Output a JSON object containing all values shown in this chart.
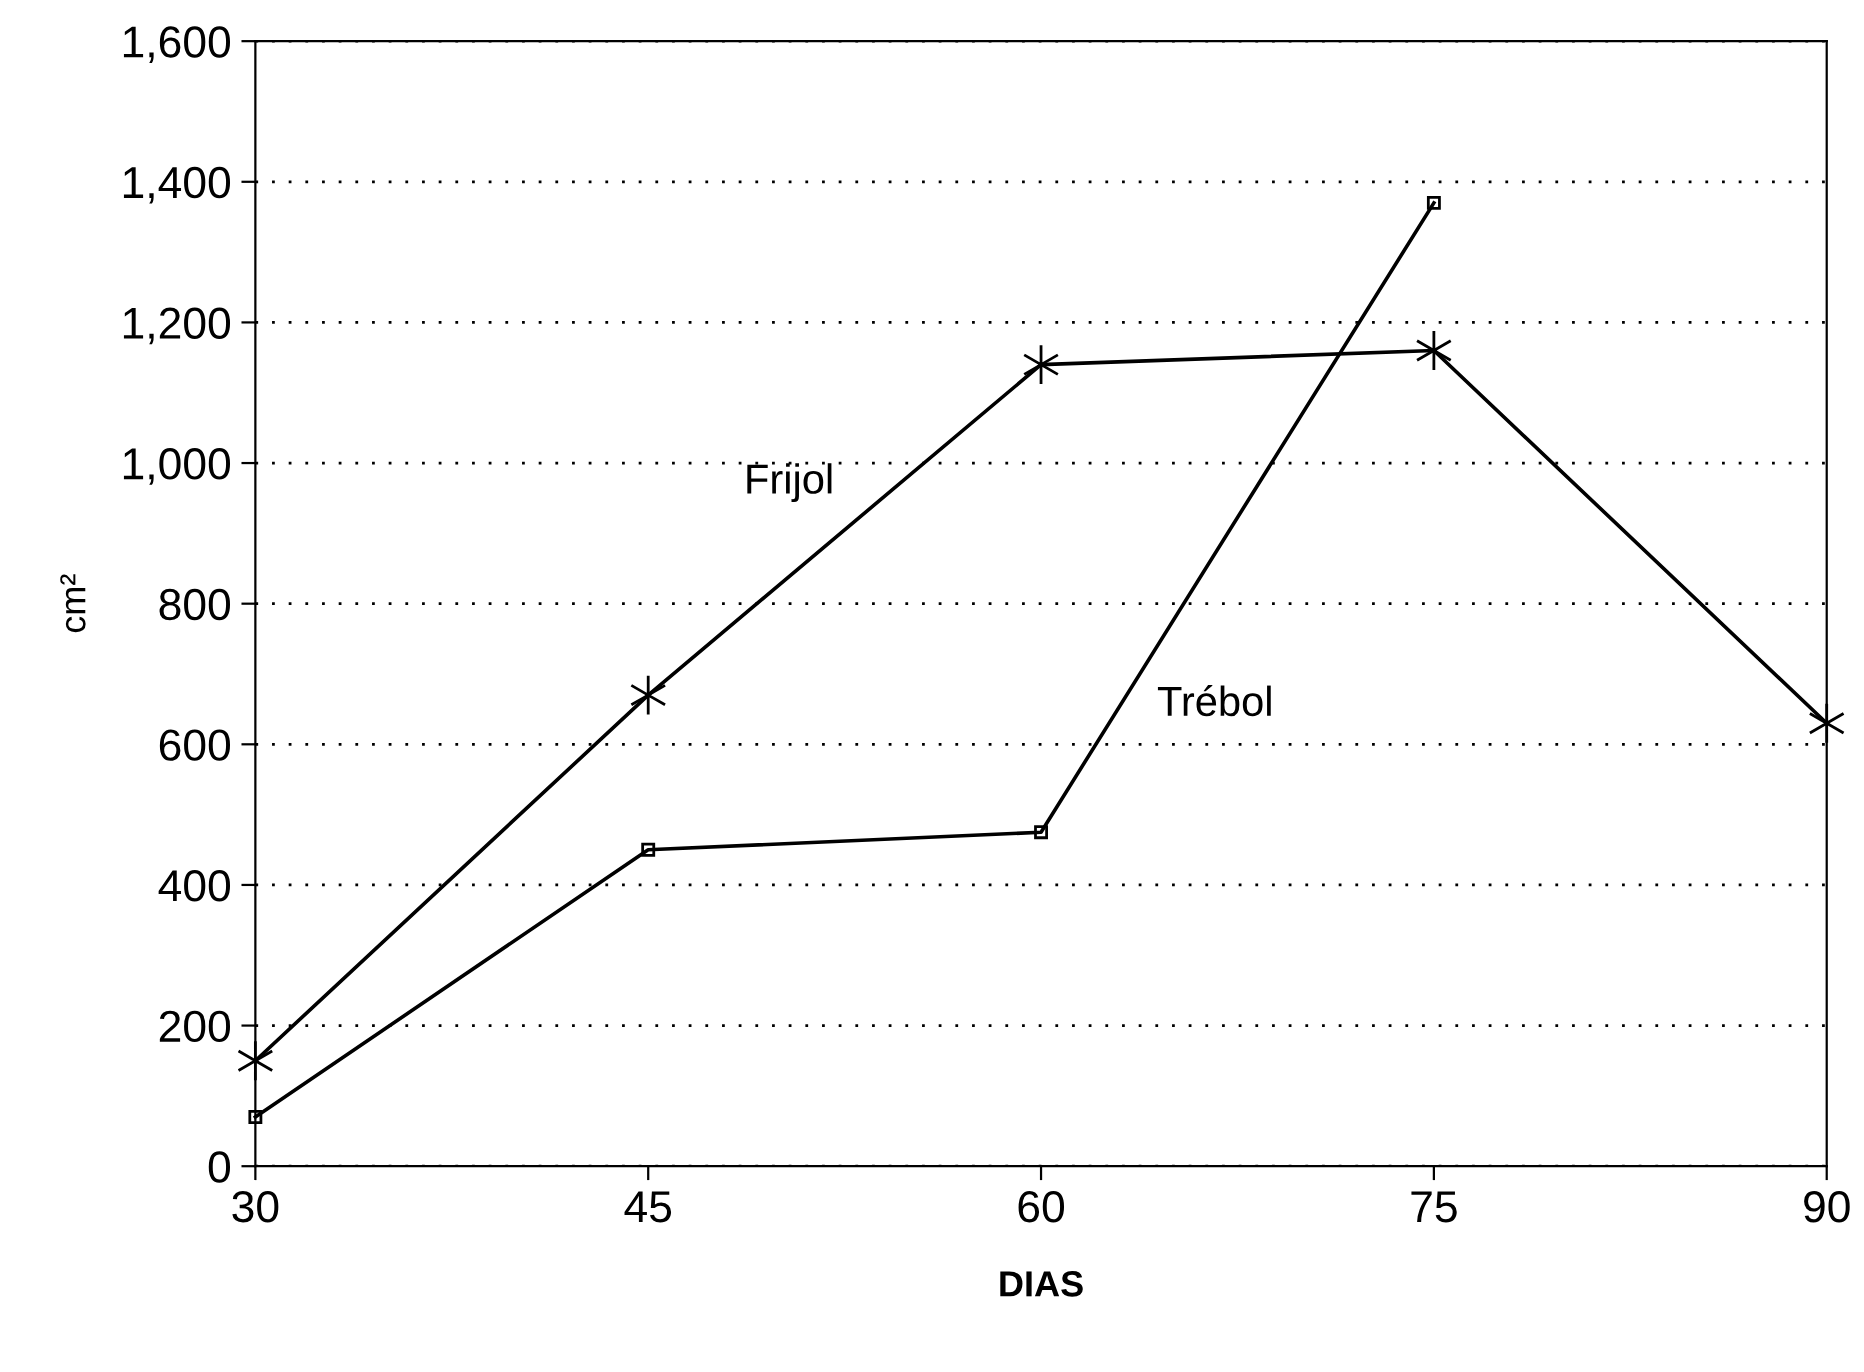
{
  "chart_data": {
    "type": "line",
    "xlabel": "DIAS",
    "ylabel": "cm²",
    "x": [
      30,
      45,
      60,
      75,
      90
    ],
    "series": [
      {
        "name": "Frijol",
        "color": "#000000",
        "marker": "cross",
        "values": [
          150,
          670,
          1140,
          1160,
          630
        ]
      },
      {
        "name": "Trébol",
        "color": "#000000",
        "marker": "square",
        "values": [
          70,
          450,
          475,
          1370,
          null
        ]
      }
    ],
    "xlim": [
      30,
      90
    ],
    "xticks": [
      30,
      45,
      60,
      75,
      90
    ],
    "ylim": [
      0,
      1600
    ],
    "yticks": [
      0,
      200,
      400,
      600,
      800,
      {
        "value": 1000,
        "label": "1,000"
      },
      {
        "value": 1200,
        "label": "1,200"
      },
      {
        "value": 1400,
        "label": "1,400"
      },
      {
        "value": 1600,
        "label": "1,600"
      }
    ],
    "grid": "y",
    "legend": false,
    "line_style": "solid"
  }
}
